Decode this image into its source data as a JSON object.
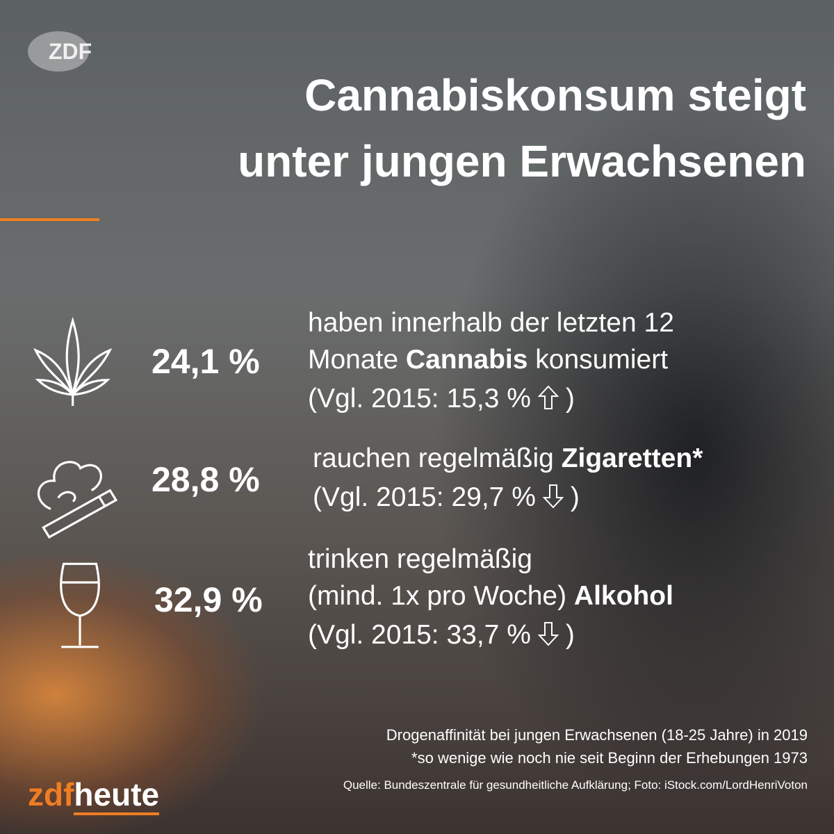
{
  "logo": "ZDF",
  "title": [
    "Cannabiskonsum steigt",
    "unter jungen Erwachsenen"
  ],
  "items": [
    {
      "value": "24,1 %",
      "icon": "cannabis",
      "lines": [
        [
          {
            "text": "haben innerhalb der letzten 12",
            "bold": false
          }
        ],
        [
          {
            "text": "Monate ",
            "bold": false
          },
          {
            "text": "Cannabis",
            "bold": true
          },
          {
            "text": " konsumiert",
            "bold": false
          }
        ]
      ],
      "compare": {
        "text": "(Vgl. 2015: 15,3 %",
        "trend": "up",
        "close": ")"
      }
    },
    {
      "value": "28,8 %",
      "icon": "cigarette",
      "lines": [
        [
          {
            "text": "rauchen regelmäßig ",
            "bold": false
          },
          {
            "text": "Zigaretten*",
            "bold": true
          }
        ]
      ],
      "compare": {
        "text": "(Vgl. 2015: 29,7 %",
        "trend": "down",
        "close": ")"
      }
    },
    {
      "value": "32,9 %",
      "icon": "wine",
      "lines": [
        [
          {
            "text": "trinken regelmäßig",
            "bold": false
          }
        ],
        [
          {
            "text": "(mind. 1x pro Woche) ",
            "bold": false
          },
          {
            "text": "Alkohol",
            "bold": true
          }
        ]
      ],
      "compare": {
        "text": "(Vgl. 2015: 33,7 %",
        "trend": "down",
        "close": ")"
      }
    }
  ],
  "footer": {
    "lines": [
      "Drogenaffinität bei jungen Erwachsenen (18-25 Jahre) in 2019",
      "*so wenige wie noch nie seit Beginn der Erhebungen 1973"
    ],
    "source": "Quelle: Bundeszentrale für gesundheitliche Aufklärung; Foto: iStock.com/LordHenriVoton"
  },
  "brand": {
    "zdf": "zdf",
    "heute": "heute"
  }
}
